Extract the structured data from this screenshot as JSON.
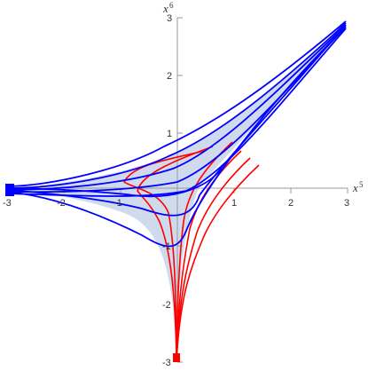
{
  "figure": {
    "x_axis_label": "x",
    "x_axis_superscript": "5",
    "y_axis_label": "x",
    "y_axis_superscript": "6",
    "x_ticks": [
      "-3",
      "-2",
      "-1",
      "1",
      "2",
      "3"
    ],
    "y_ticks": [
      "3",
      "2",
      "1",
      "-1",
      "-2",
      "-3"
    ],
    "x_range": [
      -3,
      3
    ],
    "y_range": [
      -3,
      3
    ],
    "colors": {
      "blue_curves": "#0000ff",
      "red_curves": "#ff0000",
      "fill": "#c7d4ea",
      "axis": "#999999",
      "background": "#ffffff"
    }
  }
}
